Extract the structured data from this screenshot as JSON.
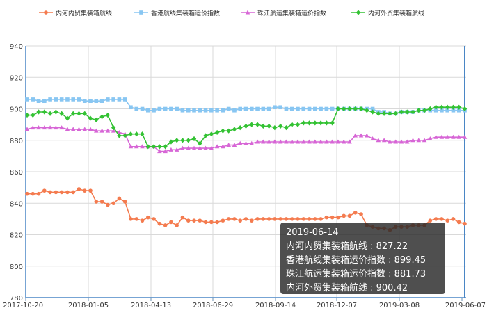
{
  "chart_data": {
    "type": "line",
    "title": "",
    "xlabel": "",
    "ylabel": "",
    "ylim": [
      780,
      940
    ],
    "y_ticks": [
      "940",
      "920",
      "900",
      "880",
      "860",
      "840",
      "820",
      "800",
      "780"
    ],
    "x_tick_labels": [
      "2017-10-20",
      "2018-01-05",
      "2018-04-13",
      "2018-06-29",
      "2018-09-14",
      "2018-12-07",
      "2019-03-08",
      "2019-06-07"
    ],
    "x_first_date": "2017-10-20",
    "x_last_date": "2019-06-07",
    "grid": true,
    "legend_position": "top",
    "series": [
      {
        "name": "内河内贸集装箱航线",
        "color": "#f47b4f",
        "marker": "circle",
        "values": [
          846,
          846,
          846,
          848,
          847,
          847,
          847,
          847,
          847,
          849,
          848,
          848,
          841,
          841,
          839,
          840,
          843,
          841,
          830,
          830,
          829,
          831,
          830,
          827,
          826,
          828,
          826,
          831,
          829,
          829,
          829,
          828,
          828,
          828,
          829,
          830,
          830,
          829,
          830,
          829,
          830,
          830,
          830,
          830,
          830,
          830,
          830,
          830,
          830,
          830,
          830,
          830,
          831,
          831,
          831,
          832,
          832,
          834,
          833,
          826,
          825,
          824,
          824,
          823,
          825,
          825,
          825,
          826,
          826,
          826,
          829,
          830,
          830,
          829,
          830,
          828,
          827
        ]
      },
      {
        "name": "香港航线集装箱运价指数",
        "color": "#88c6f2",
        "marker": "square",
        "values": [
          906,
          906,
          905,
          905,
          906,
          906,
          906,
          906,
          906,
          906,
          905,
          905,
          905,
          905,
          906,
          906,
          906,
          906,
          901,
          900,
          900,
          899,
          899,
          900,
          900,
          900,
          900,
          899,
          899,
          899,
          899,
          899,
          899,
          899,
          899,
          900,
          899,
          900,
          900,
          900,
          900,
          900,
          900,
          901,
          901,
          900,
          900,
          900,
          900,
          900,
          900,
          900,
          900,
          900,
          900,
          900,
          900,
          900,
          900,
          900,
          900,
          898,
          898,
          897,
          897,
          898,
          898,
          898,
          899,
          899,
          899,
          899,
          899,
          899,
          899,
          899,
          899
        ]
      },
      {
        "name": "珠江航运集装箱运价指数",
        "color": "#d766d6",
        "marker": "triangle",
        "values": [
          887,
          888,
          888,
          888,
          888,
          888,
          888,
          887,
          887,
          887,
          887,
          887,
          886,
          886,
          886,
          886,
          885,
          884,
          876,
          876,
          876,
          876,
          876,
          873,
          873,
          874,
          874,
          875,
          875,
          875,
          875,
          875,
          875,
          876,
          876,
          877,
          877,
          878,
          878,
          878,
          879,
          879,
          879,
          879,
          879,
          879,
          879,
          879,
          879,
          879,
          879,
          879,
          879,
          879,
          879,
          879,
          879,
          883,
          883,
          883,
          881,
          880,
          880,
          879,
          879,
          879,
          879,
          880,
          880,
          880,
          881,
          882,
          882,
          882,
          882,
          882,
          882
        ]
      },
      {
        "name": "内河外贸集装箱航线",
        "color": "#33c233",
        "marker": "diamond",
        "values": [
          896,
          896,
          898,
          898,
          897,
          898,
          897,
          894,
          897,
          897,
          897,
          894,
          893,
          895,
          896,
          888,
          883,
          883,
          884,
          884,
          884,
          876,
          876,
          876,
          876,
          879,
          880,
          880,
          880,
          881,
          878,
          883,
          884,
          885,
          886,
          886,
          887,
          888,
          889,
          890,
          890,
          889,
          889,
          888,
          889,
          888,
          890,
          890,
          891,
          891,
          891,
          891,
          891,
          891,
          900,
          900,
          900,
          900,
          900,
          899,
          898,
          897,
          897,
          897,
          897,
          898,
          898,
          898,
          899,
          899,
          900,
          901,
          901,
          901,
          901,
          901,
          900
        ]
      }
    ],
    "tooltip": {
      "date": "2019-06-14",
      "lines": [
        "内河内贸集装箱航线 : 827.22",
        "香港航线集装箱运价指数 : 899.45",
        "珠江航运集装箱运价指数 : 881.73",
        "内河外贸集装箱航线 : 900.42"
      ]
    }
  }
}
